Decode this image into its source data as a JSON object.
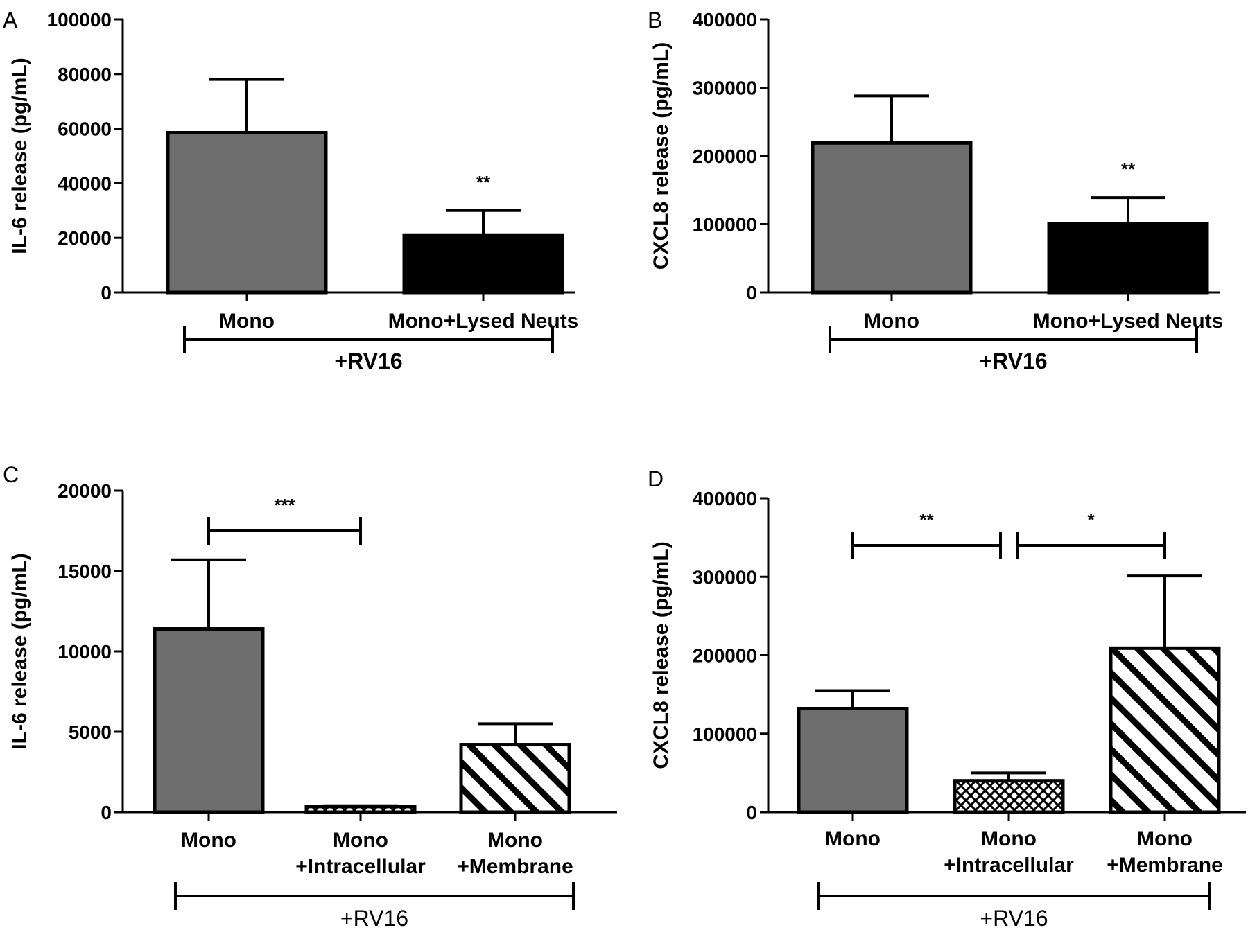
{
  "chart_data": [
    {
      "panel": "A",
      "type": "bar",
      "ylabel": "IL-6 release (pg/mL)",
      "ylim": [
        0,
        100000
      ],
      "yticks": [
        "0",
        "20000",
        "40000",
        "60000",
        "80000",
        "100000"
      ],
      "categories": [
        [
          "Mono"
        ],
        [
          "Mono+Lysed Neuts"
        ]
      ],
      "values": [
        58500,
        21000
      ],
      "errors": [
        19500,
        9000
      ],
      "fills": [
        "gray",
        "black"
      ],
      "significance": [
        {
          "label": "**",
          "over": 1
        }
      ],
      "condition": "+RV16",
      "condition_bold": true
    },
    {
      "panel": "B",
      "type": "bar",
      "ylabel": "CXCL8 release (pg/mL)",
      "ylim": [
        0,
        400000
      ],
      "yticks": [
        "0",
        "100000",
        "200000",
        "300000",
        "400000"
      ],
      "categories": [
        [
          "Mono"
        ],
        [
          "Mono+Lysed Neuts"
        ]
      ],
      "values": [
        219000,
        100000
      ],
      "errors": [
        69000,
        39000
      ],
      "fills": [
        "gray",
        "black"
      ],
      "significance": [
        {
          "label": "**",
          "over": 1
        }
      ],
      "condition": "+RV16",
      "condition_bold": true
    },
    {
      "panel": "C",
      "type": "bar",
      "ylabel": "IL-6 release (pg/mL)",
      "ylim": [
        0,
        20000
      ],
      "yticks": [
        "0",
        "5000",
        "10000",
        "15000",
        "20000"
      ],
      "categories": [
        [
          "Mono"
        ],
        [
          "Mono",
          "+Intracellular"
        ],
        [
          "Mono",
          "+Membrane"
        ]
      ],
      "values": [
        11400,
        350,
        4200
      ],
      "errors": [
        4300,
        50,
        1300
      ],
      "fills": [
        "gray",
        "hatch",
        "stripe"
      ],
      "brackets": [
        {
          "from": 0,
          "to": 1,
          "label": "***",
          "y": 17500
        }
      ],
      "condition": "+RV16",
      "condition_bold": false
    },
    {
      "panel": "D",
      "type": "bar",
      "ylabel": "CXCL8 release (pg/mL)",
      "ylim": [
        0,
        400000
      ],
      "yticks": [
        "0",
        "100000",
        "200000",
        "300000",
        "400000"
      ],
      "categories": [
        [
          "Mono"
        ],
        [
          "Mono",
          "+Intracellular"
        ],
        [
          "Mono",
          "+Membrane"
        ]
      ],
      "values": [
        132000,
        40000,
        209000
      ],
      "errors": [
        23000,
        10000,
        92000
      ],
      "fills": [
        "gray",
        "hatch",
        "stripe"
      ],
      "brackets": [
        {
          "from": 0,
          "to": 1,
          "label": "**",
          "y": 340000
        },
        {
          "from": 1,
          "to": 2,
          "label": "*",
          "y": 340000
        }
      ],
      "condition": "+RV16",
      "condition_bold": false
    }
  ],
  "colors": {
    "gray": "#6e6e6e",
    "black": "#000000",
    "hatch_bg": "#ffffff",
    "stroke": "#000000"
  }
}
